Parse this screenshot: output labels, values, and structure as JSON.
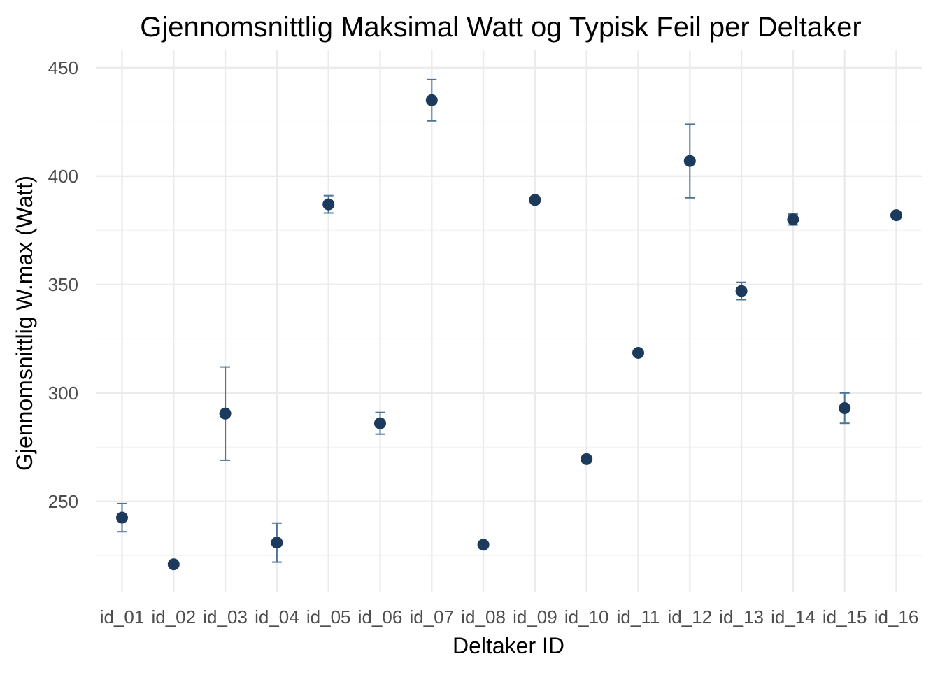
{
  "chart_data": {
    "type": "scatter",
    "title": "Gjennomsnittlig Maksimal Watt og Typisk Feil per Deltaker",
    "xlabel": "Deltaker ID",
    "ylabel": "Gjennomsnittlig W.max (Watt)",
    "categories": [
      "id_01",
      "id_02",
      "id_03",
      "id_04",
      "id_05",
      "id_06",
      "id_07",
      "id_08",
      "id_09",
      "id_10",
      "id_11",
      "id_12",
      "id_13",
      "id_14",
      "id_15",
      "id_16"
    ],
    "values": [
      242.5,
      221.0,
      290.5,
      231.0,
      387.0,
      286.0,
      435.0,
      230.0,
      389.0,
      269.5,
      318.5,
      407.0,
      347.0,
      380.0,
      293.0,
      382.0
    ],
    "error": [
      6.5,
      1.0,
      21.5,
      9.0,
      4.0,
      5.0,
      9.5,
      0.0,
      1.5,
      1.0,
      0.0,
      17.0,
      4.0,
      2.5,
      7.0,
      1.0
    ],
    "ylim": [
      208,
      458
    ],
    "yticks": [
      250,
      300,
      350,
      400,
      450
    ],
    "grid": true,
    "legend": "none",
    "colors": {
      "point": "#1b3a5c",
      "errorbar": "#4a7599",
      "grid": "#ebebeb"
    }
  }
}
